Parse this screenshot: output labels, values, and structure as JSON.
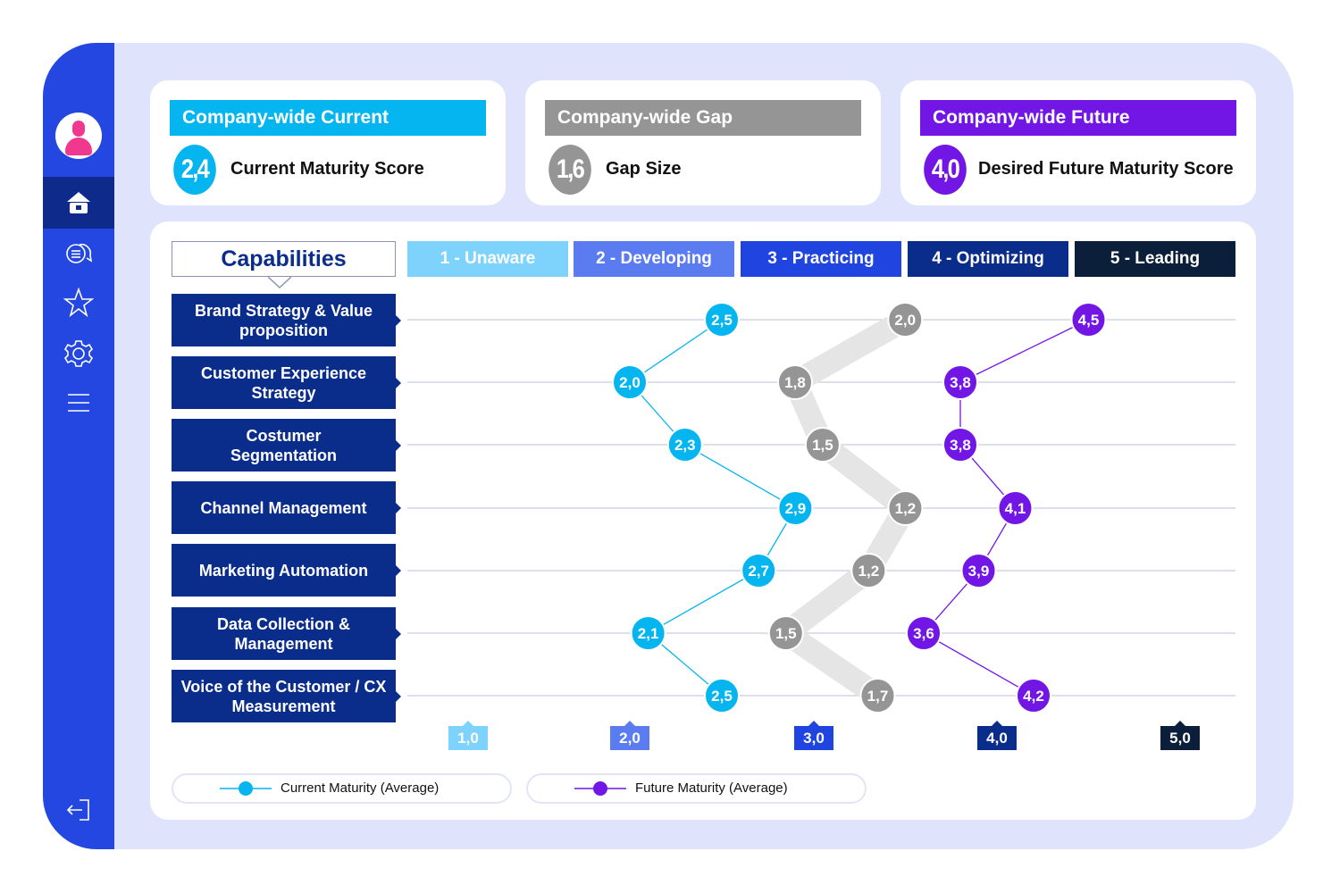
{
  "sidebar": {
    "items": [
      {
        "icon": "user-avatar-icon"
      },
      {
        "icon": "home-icon",
        "active": true
      },
      {
        "icon": "chat-icon"
      },
      {
        "icon": "star-icon"
      },
      {
        "icon": "gear-icon"
      },
      {
        "icon": "menu-icon"
      },
      {
        "icon": "logout-icon"
      }
    ]
  },
  "cards": [
    {
      "title": "Company-wide Current",
      "score": "2,4",
      "label": "Current Maturity Score",
      "color": "#05b5ef"
    },
    {
      "title": "Company-wide Gap",
      "score": "1,6",
      "label": "Gap Size",
      "color": "#959595"
    },
    {
      "title": "Company-wide Future",
      "score": "4,0",
      "label": "Desired Future Maturity Score",
      "color": "#7216e6"
    }
  ],
  "chart_data": {
    "type": "line",
    "capabilities_header": "Capabilities",
    "levels": [
      {
        "label": "1 - Unaware",
        "color": "#7dd3fb"
      },
      {
        "label": "2 - Developing",
        "color": "#5b7cf0"
      },
      {
        "label": "3 - Practicing",
        "color": "#1f44e0"
      },
      {
        "label": "4 - Optimizing",
        "color": "#0a2d8c"
      },
      {
        "label": "5 - Leading",
        "color": "#0c1f3a"
      }
    ],
    "categories": [
      "Brand Strategy & Value proposition",
      "Customer Experience Strategy",
      "Costumer Segmentation",
      "Channel Management",
      "Marketing Automation",
      "Data Collection & Management",
      "Voice of the Customer / CX Measurement"
    ],
    "x_ticks": [
      "1,0",
      "2,0",
      "3,0",
      "4,0",
      "5,0"
    ],
    "xlim": [
      1,
      5
    ],
    "series": [
      {
        "name": "Current Maturity (Average)",
        "color": "#05b5ef",
        "values": [
          2.5,
          2.0,
          2.3,
          2.9,
          2.7,
          2.1,
          2.5
        ]
      },
      {
        "name": "Future Maturity (Average)",
        "color": "#7216e6",
        "values": [
          4.5,
          3.8,
          3.8,
          4.1,
          3.9,
          3.6,
          4.2
        ]
      }
    ],
    "gap": {
      "color": "#959595",
      "values": [
        2.0,
        1.8,
        1.5,
        1.2,
        1.2,
        1.5,
        1.7
      ]
    },
    "legend": [
      "Current Maturity (Average)",
      "Future Maturity (Average)"
    ]
  }
}
